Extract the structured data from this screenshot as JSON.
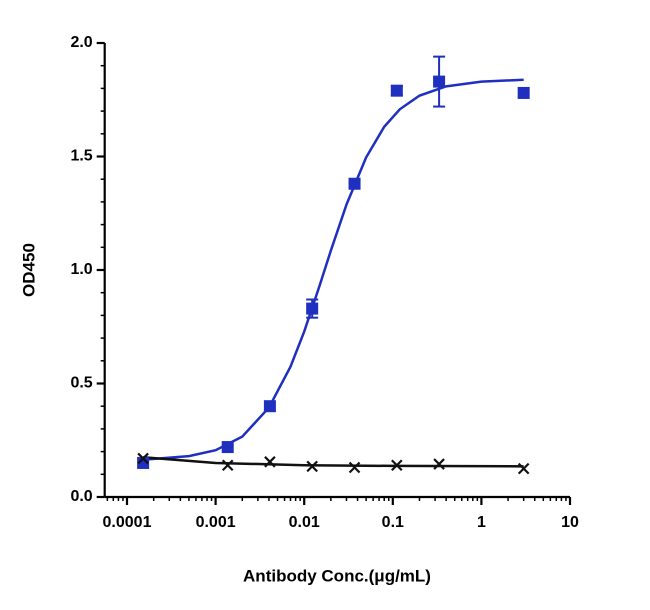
{
  "chart_data": {
    "type": "scatter",
    "x_label": "Antibody Conc.(μg/mL)",
    "y_label": "OD450",
    "x_log": true,
    "xlim": [
      5.6e-05,
      10
    ],
    "xticks": [
      0.0001,
      0.001,
      0.01,
      0.1,
      1,
      10
    ],
    "xminorticks": [
      6e-05,
      7e-05,
      8e-05,
      9e-05,
      0.0002,
      0.0003,
      0.0004,
      0.0005,
      0.0006,
      0.0007,
      0.0008,
      0.0009,
      0.002,
      0.003,
      0.004,
      0.005,
      0.006,
      0.007,
      0.008,
      0.009,
      0.02,
      0.03,
      0.04,
      0.05,
      0.06,
      0.07,
      0.08,
      0.09,
      0.2,
      0.3,
      0.4,
      0.5,
      0.6,
      0.7,
      0.8,
      0.9,
      2,
      3,
      4,
      5,
      6,
      7,
      8,
      9
    ],
    "ylim": [
      0,
      2
    ],
    "yticks": [
      {
        "value": 0,
        "label": "0.0"
      },
      0.5,
      {
        "value": 1,
        "label": "1.0"
      },
      1.5,
      {
        "value": 2,
        "label": "2.0"
      }
    ],
    "yminorticks": [
      0.1,
      0.2,
      0.3,
      0.4,
      0.6,
      0.7,
      0.8,
      0.9,
      1.1,
      1.2,
      1.3,
      1.4,
      1.6,
      1.7,
      1.8,
      1.9
    ],
    "series": [
      {
        "type": "scatter",
        "marker": "square",
        "color": "#1f2fbf",
        "x": [
          0.000152,
          0.00137,
          0.0041,
          0.0123,
          0.037,
          0.111,
          0.333,
          3
        ],
        "values": [
          0.15,
          0.22,
          0.4,
          0.83,
          1.38,
          1.79,
          1.83,
          1.78
        ],
        "errors": [
          null,
          null,
          null,
          0.04,
          null,
          0.02,
          0.11,
          null
        ]
      },
      {
        "type": "line",
        "color": "#1f2fbf",
        "x": [
          0.000152,
          0.0005,
          0.001,
          0.002,
          0.004,
          0.007,
          0.01,
          0.015,
          0.02,
          0.03,
          0.05,
          0.08,
          0.12,
          0.2,
          0.4,
          1,
          3
        ],
        "values": [
          0.164,
          0.18,
          0.206,
          0.266,
          0.394,
          0.574,
          0.729,
          0.934,
          1.086,
          1.288,
          1.496,
          1.631,
          1.708,
          1.768,
          1.809,
          1.83,
          1.838
        ]
      },
      {
        "type": "scatter",
        "marker": "cross",
        "color": "#111111",
        "x": [
          0.000152,
          0.00137,
          0.0041,
          0.0123,
          0.037,
          0.111,
          0.333,
          3
        ],
        "values": [
          0.17,
          0.14,
          0.155,
          0.135,
          0.13,
          0.14,
          0.145,
          0.125
        ]
      },
      {
        "type": "line",
        "color": "#111111",
        "x": [
          0.000152,
          0.001,
          0.01,
          0.1,
          3
        ],
        "values": [
          0.175,
          0.15,
          0.14,
          0.137,
          0.135
        ]
      }
    ]
  }
}
